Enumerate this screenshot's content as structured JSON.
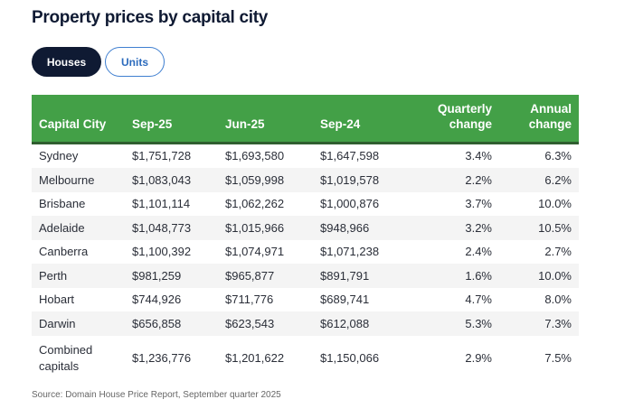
{
  "title": "Property prices by capital city",
  "tabs": [
    {
      "label": "Houses",
      "active": true
    },
    {
      "label": "Units",
      "active": false
    }
  ],
  "colors": {
    "header_bg": "#43a047",
    "active_tab": "#0f1a33",
    "inactive_tab_border": "#3f7fd0"
  },
  "table": {
    "headers": [
      "Capital City",
      "Sep-25",
      "Jun-25",
      "Sep-24",
      "Quarterly change",
      "Annual change"
    ],
    "rows": [
      [
        "Sydney",
        "$1,751,728",
        "$1,693,580",
        "$1,647,598",
        "3.4%",
        "6.3%"
      ],
      [
        "Melbourne",
        "$1,083,043",
        "$1,059,998",
        "$1,019,578",
        "2.2%",
        "6.2%"
      ],
      [
        "Brisbane",
        "$1,101,114",
        "$1,062,262",
        "$1,000,876",
        "3.7%",
        "10.0%"
      ],
      [
        "Adelaide",
        "$1,048,773",
        "$1,015,966",
        "$948,966",
        "3.2%",
        "10.5%"
      ],
      [
        "Canberra",
        "$1,100,392",
        "$1,074,971",
        "$1,071,238",
        "2.4%",
        "2.7%"
      ],
      [
        "Perth",
        "$981,259",
        "$965,877",
        "$891,791",
        "1.6%",
        "10.0%"
      ],
      [
        "Hobart",
        "$744,926",
        "$711,776",
        "$689,741",
        "4.7%",
        "8.0%"
      ],
      [
        "Darwin",
        "$656,858",
        "$623,543",
        "$612,088",
        "5.3%",
        "7.3%"
      ],
      [
        "Combined capitals",
        "$1,236,776",
        "$1,201,622",
        "$1,150,066",
        "2.9%",
        "7.5%"
      ]
    ]
  },
  "source": "Source: Domain House Price Report, September quarter 2025"
}
